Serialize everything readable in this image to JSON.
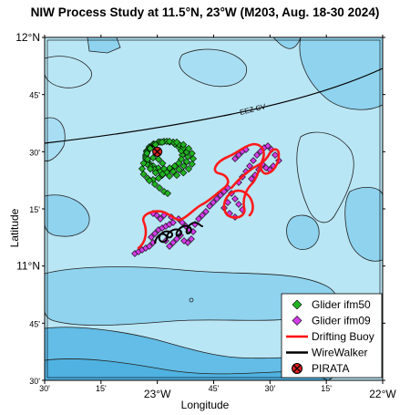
{
  "title": "NIW Process Study at 11.5°N, 23°W (M203, Aug. 18-30 2024)",
  "xlabel": "Longitude",
  "ylabel": "Latitude",
  "colors": {
    "sea_light": "#b9e6f5",
    "sea_mid": "#8fd3ee",
    "sea_dark": "#63bde6",
    "glider_ifm50": "#22b422",
    "glider_ifm09": "#d23ce6",
    "drifting_buoy": "#ff0000",
    "wirewalker": "#000000",
    "pirata": "#e02020"
  },
  "map": {
    "lon_range": [
      -23.5,
      -22.0
    ],
    "lat_range": [
      10.5,
      12.0
    ],
    "eez_label": "EEZ CV",
    "x_ticks": [
      {
        "lon": -23.5,
        "label": "30'",
        "major": false
      },
      {
        "lon": -23.25,
        "label": "15'",
        "major": false
      },
      {
        "lon": -23.0,
        "label": "23°W",
        "major": true
      },
      {
        "lon": -22.75,
        "label": "45'",
        "major": false
      },
      {
        "lon": -22.5,
        "label": "30'",
        "major": false
      },
      {
        "lon": -22.25,
        "label": "15'",
        "major": false
      },
      {
        "lon": -22.0,
        "label": "22°W",
        "major": true
      }
    ],
    "y_ticks": [
      {
        "lat": 12.0,
        "label": "12°N",
        "major": true
      },
      {
        "lat": 11.75,
        "label": "45'",
        "major": false
      },
      {
        "lat": 11.5,
        "label": "30'",
        "major": false
      },
      {
        "lat": 11.25,
        "label": "15'",
        "major": false
      },
      {
        "lat": 11.0,
        "label": "11°N",
        "major": true
      },
      {
        "lat": 10.75,
        "label": "45'",
        "major": false
      },
      {
        "lat": 10.5,
        "label": "30'",
        "major": false
      }
    ],
    "pirata": {
      "lon": -23.0,
      "lat": 11.5
    }
  },
  "legend": [
    {
      "label": "Glider ifm50",
      "symbol": "diamond-green"
    },
    {
      "label": "Glider ifm09",
      "symbol": "diamond-magenta"
    },
    {
      "label": "Drifting Buoy",
      "symbol": "line-red"
    },
    {
      "label": "WireWalker",
      "symbol": "line-black"
    },
    {
      "label": "PIRATA",
      "symbol": "pirata-marker"
    }
  ]
}
